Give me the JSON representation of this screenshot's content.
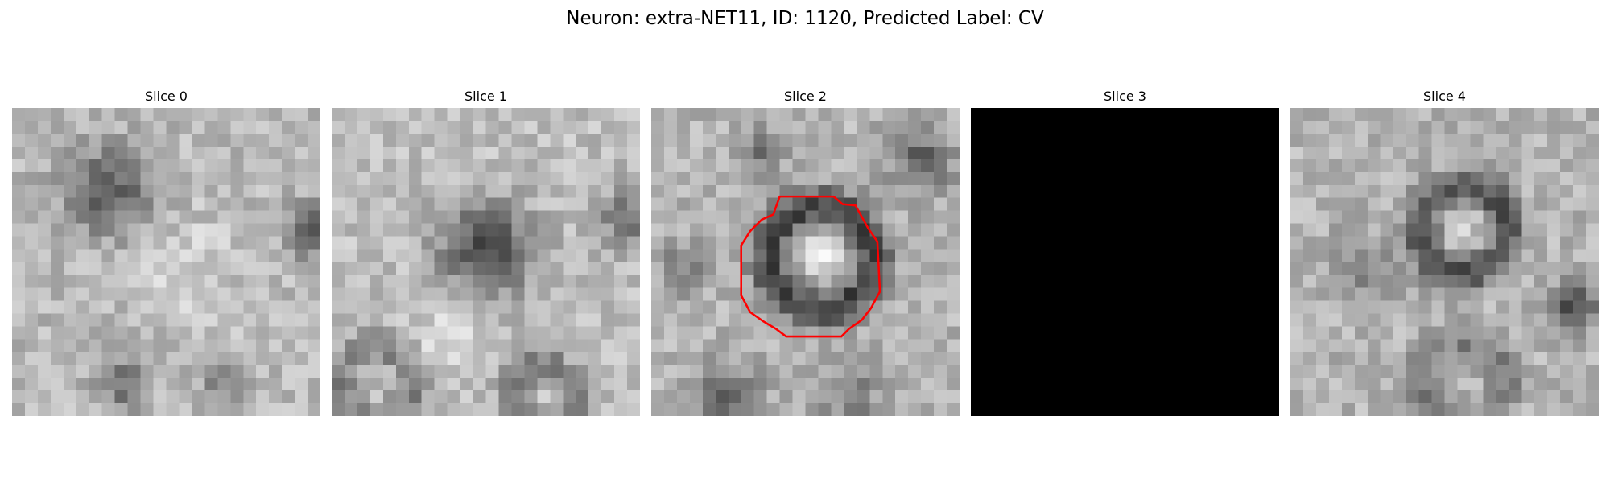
{
  "figure": {
    "title": "Neuron: extra-NET11, ID: 1120, Predicted Label: CV"
  },
  "panels": [
    {
      "title": "Slice 0",
      "blank": false,
      "seed": 11,
      "contour": false
    },
    {
      "title": "Slice 1",
      "blank": false,
      "seed": 23,
      "contour": false
    },
    {
      "title": "Slice 2",
      "blank": false,
      "seed": 37,
      "contour": true
    },
    {
      "title": "Slice 3",
      "blank": true,
      "seed": 41,
      "contour": false
    },
    {
      "title": "Slice 4",
      "blank": false,
      "seed": 53,
      "contour": false
    }
  ],
  "colors": {
    "contour": "#ff0000",
    "blank_slice": "#000000"
  }
}
